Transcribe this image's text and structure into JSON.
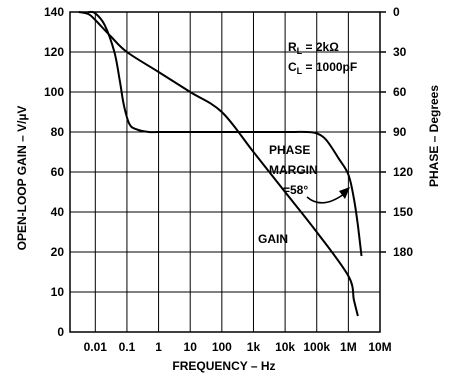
{
  "chart_data": {
    "type": "line",
    "title": "",
    "xlabel": "FREQUENCY – Hz",
    "ylabel_left": "OPEN-LOOP GAIN – V/µV",
    "ylabel_right": "PHASE – Degrees",
    "x_scale": "log",
    "x_ticks": [
      {
        "value": 0.01,
        "label": "0.01"
      },
      {
        "value": 0.1,
        "label": "0.1"
      },
      {
        "value": 1,
        "label": "1"
      },
      {
        "value": 10,
        "label": "10"
      },
      {
        "value": 100,
        "label": "100"
      },
      {
        "value": 1000,
        "label": "1k"
      },
      {
        "value": 10000,
        "label": "10k"
      },
      {
        "value": 100000,
        "label": "100k"
      },
      {
        "value": 1000000,
        "label": "1M"
      },
      {
        "value": 10000000,
        "label": "10M"
      }
    ],
    "y_left_ticks": [
      "140",
      "120",
      "100",
      "80",
      "60",
      "40",
      "20",
      "10",
      "0"
    ],
    "y_right_ticks": [
      "0",
      "30",
      "60",
      "90",
      "120",
      "150",
      "180"
    ],
    "y_left_range": [
      0,
      140
    ],
    "y_right_range": [
      0,
      180
    ],
    "grid": true,
    "series": [
      {
        "name": "GAIN",
        "points": [
          [
            0.003,
            140
          ],
          [
            0.006,
            139
          ],
          [
            0.01,
            136
          ],
          [
            0.03,
            128
          ],
          [
            0.1,
            120
          ],
          [
            1,
            110
          ],
          [
            10,
            100
          ],
          [
            100,
            90
          ],
          [
            1000,
            70
          ],
          [
            10000,
            50
          ],
          [
            100000,
            30
          ],
          [
            1000000,
            14
          ],
          [
            1500000,
            8
          ],
          [
            2000000,
            4
          ]
        ]
      },
      {
        "name": "PHASE",
        "points": [
          [
            0.006,
            0
          ],
          [
            0.01,
            1
          ],
          [
            0.02,
            10
          ],
          [
            0.04,
            30
          ],
          [
            0.06,
            52
          ],
          [
            0.08,
            70
          ],
          [
            0.12,
            84
          ],
          [
            0.2,
            88
          ],
          [
            0.5,
            90
          ],
          [
            1,
            90
          ],
          [
            10,
            90
          ],
          [
            100,
            90
          ],
          [
            1000,
            90
          ],
          [
            10000,
            90
          ],
          [
            50000,
            90
          ],
          [
            100000,
            91
          ],
          [
            200000,
            96
          ],
          [
            500000,
            110
          ],
          [
            1000000,
            122
          ],
          [
            1500000,
            140
          ],
          [
            2000000,
            160
          ],
          [
            2600000,
            183
          ]
        ]
      }
    ],
    "annotations": {
      "load_line1_prefix": "R",
      "load_line1_sub": "L",
      "load_line1_value": " = 2kΩ",
      "load_line2_prefix": "C",
      "load_line2_sub": "L",
      "load_line2_value": " = 1000pF",
      "phase_label": "PHASE",
      "margin_label": "MARGIN",
      "margin_value": "=58°",
      "gain_label": "GAIN"
    }
  }
}
